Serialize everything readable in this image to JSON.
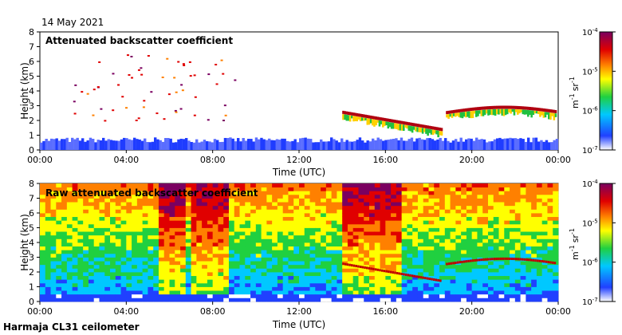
{
  "date": "14 May 2021",
  "footer": "Harmaja CL31 ceilometer",
  "chart_data": [
    {
      "type": "heatmap",
      "title": "Attenuated backscatter coefficient",
      "xlabel": "Time (UTC)",
      "ylabel": "Height (km)",
      "xlim": [
        0,
        24
      ],
      "ylim": [
        0,
        8
      ],
      "x_ticks": [
        "00:00",
        "04:00",
        "08:00",
        "12:00",
        "16:00",
        "20:00",
        "00:00"
      ],
      "y_ticks": [
        "0",
        "1",
        "2",
        "3",
        "4",
        "5",
        "6",
        "7",
        "8"
      ],
      "colorbar": {
        "unit_base": "m",
        "unit_base_exp": "-1",
        "unit_sr": "sr",
        "unit_sr_exp": "-1",
        "ticks": [
          {
            "base": "10",
            "exp": "-4"
          },
          {
            "base": "10",
            "exp": "-5"
          },
          {
            "base": "10",
            "exp": "-6"
          },
          {
            "base": "10",
            "exp": "-7"
          }
        ],
        "range_log10": [
          -7,
          -4
        ]
      },
      "layers": [
        {
          "name": "boundary-layer",
          "t": [
            0,
            24
          ],
          "h": [
            0,
            0.5
          ],
          "log10": -6.3
        },
        {
          "name": "cloud-14-18",
          "t": [
            14.0,
            18.6
          ],
          "h": [
            1.3,
            2.6
          ],
          "log10": -4.2
        },
        {
          "name": "cloud-19-24",
          "t": [
            18.8,
            23.9
          ],
          "h": [
            1.8,
            3.0
          ],
          "log10": -4.2
        }
      ]
    },
    {
      "type": "heatmap",
      "title": "Raw attenuated backscatter coefficient",
      "xlabel": "Time (UTC)",
      "ylabel": "Height (km)",
      "xlim": [
        0,
        24
      ],
      "ylim": [
        0,
        8
      ],
      "x_ticks": [
        "00:00",
        "04:00",
        "08:00",
        "12:00",
        "16:00",
        "20:00",
        "00:00"
      ],
      "y_ticks": [
        "0",
        "1",
        "2",
        "3",
        "4",
        "5",
        "6",
        "7",
        "8"
      ],
      "colorbar": {
        "unit_base": "m",
        "unit_base_exp": "-1",
        "unit_sr": "sr",
        "unit_sr_exp": "-1",
        "ticks": [
          {
            "base": "10",
            "exp": "-4"
          },
          {
            "base": "10",
            "exp": "-5"
          },
          {
            "base": "10",
            "exp": "-6"
          },
          {
            "base": "10",
            "exp": "-7"
          }
        ],
        "range_log10": [
          -7,
          -4
        ]
      },
      "noise_bands": [
        [
          5.3,
          6.7
        ],
        [
          6.8,
          8.7
        ],
        [
          14.0,
          16.5
        ]
      ]
    }
  ]
}
